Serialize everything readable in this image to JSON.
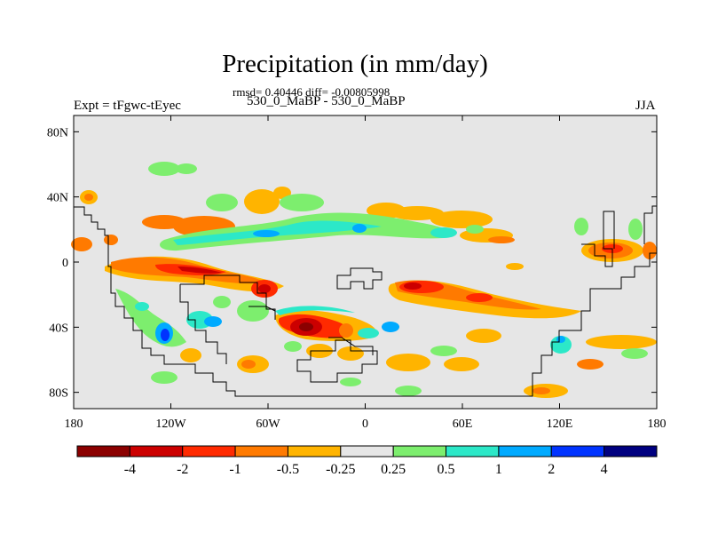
{
  "title": "Precipitation (in mm/day)",
  "stats": "rmsd= 0.40446 diff= -0.00805998",
  "left_label": "Expt = tFgwc-tEyec",
  "center_label": "530_0_MaBP - 530_0_MaBP",
  "right_label": "JJA",
  "lat_ticks": [
    {
      "value": 80,
      "label": "80N"
    },
    {
      "value": 40,
      "label": "40N"
    },
    {
      "value": 0,
      "label": "0"
    },
    {
      "value": -40,
      "label": "40S"
    },
    {
      "value": -80,
      "label": "80S"
    }
  ],
  "lon_ticks": [
    {
      "value": -180,
      "label": "180"
    },
    {
      "value": -120,
      "label": "120W"
    },
    {
      "value": -60,
      "label": "60W"
    },
    {
      "value": 0,
      "label": "0"
    },
    {
      "value": 60,
      "label": "60E"
    },
    {
      "value": 120,
      "label": "120E"
    },
    {
      "value": 180,
      "label": "180"
    }
  ],
  "colorbar": {
    "colors": [
      "#8b0000",
      "#cc0000",
      "#ff2a00",
      "#ff7a00",
      "#ffb400",
      "#e6e6e6",
      "#7dee6e",
      "#2ce8c8",
      "#00aaff",
      "#0033ff",
      "#000080"
    ],
    "labels": [
      "-4",
      "-2",
      "-1",
      "-0.5",
      "-0.25",
      "0.25",
      "0.5",
      "1",
      "2",
      "4"
    ]
  },
  "colors": {
    "land_fill": "#e6e6e6",
    "coastline": "#000000"
  }
}
